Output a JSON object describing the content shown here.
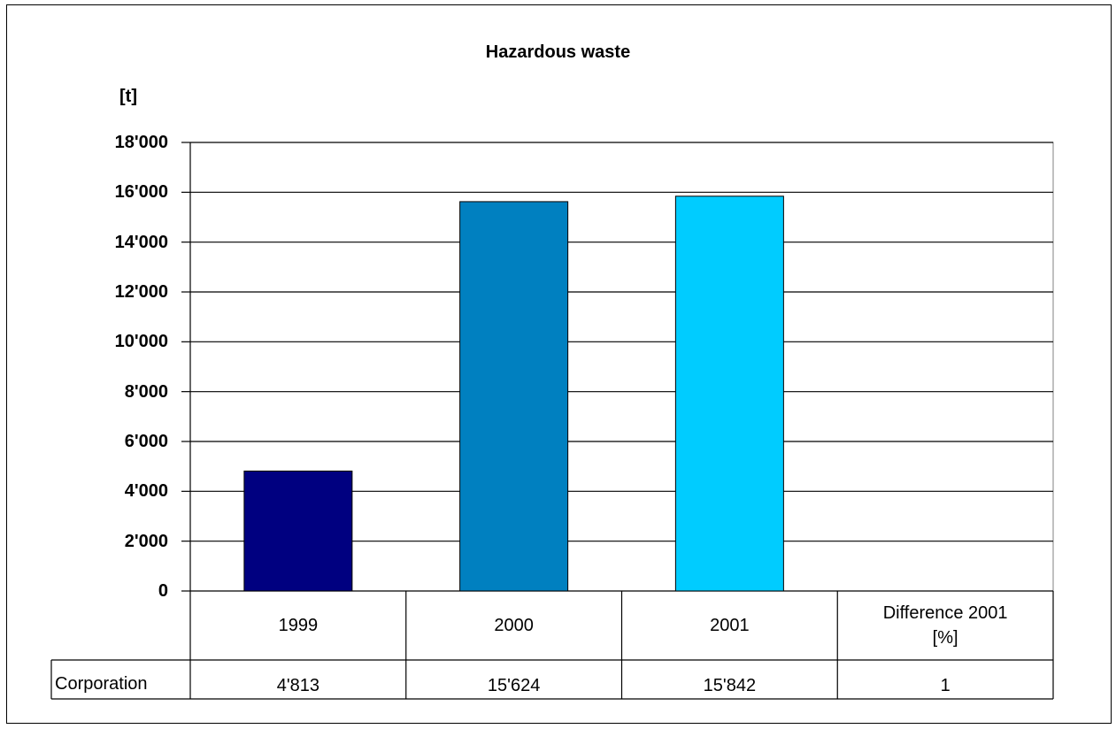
{
  "chart_data": {
    "type": "bar",
    "title": "Hazardous waste",
    "ylabel": "[t]",
    "categories": [
      "1999",
      "2000",
      "2001",
      "Difference 2001\n[%]"
    ],
    "yticks": [
      "0",
      "2'000",
      "4'000",
      "6'000",
      "8'000",
      "10'000",
      "12'000",
      "14'000",
      "16'000",
      "18'000"
    ],
    "ylim": [
      0,
      18000
    ],
    "grid": true,
    "series": [
      {
        "name": "Corporation",
        "values": [
          4813,
          15624,
          15842,
          null
        ],
        "colors": [
          "#000080",
          "#0080c0",
          "#00ccff",
          ""
        ]
      }
    ],
    "table": {
      "row_label": "Corporation",
      "cells": [
        "4'813",
        "15'624",
        "15'842",
        "1"
      ]
    }
  }
}
